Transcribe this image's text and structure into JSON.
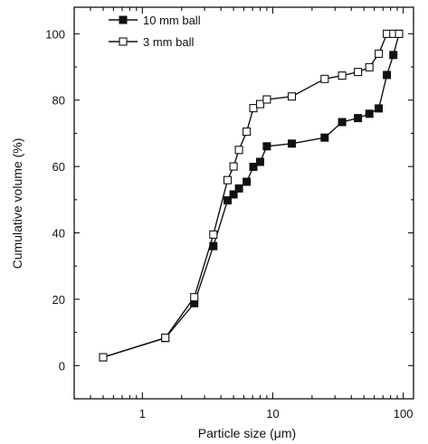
{
  "chart_data": {
    "type": "line",
    "xlabel": "Particle size (μm)",
    "ylabel": "Cumulative volume (%)",
    "xscale": "log",
    "xlim": [
      0.3,
      120
    ],
    "ylim": [
      -10,
      108
    ],
    "xticks": [
      1,
      10,
      100
    ],
    "xtick_labels": [
      "1",
      "10",
      "100"
    ],
    "yticks": [
      0,
      20,
      40,
      60,
      80,
      100
    ],
    "ytick_labels": [
      "0",
      "20",
      "40",
      "60",
      "80",
      "100"
    ],
    "grid": false,
    "legend_position": "top-left",
    "series": [
      {
        "name": "10 mm ball",
        "marker": "filled-square",
        "x": [
          0.5,
          1.5,
          2.5,
          3.5,
          4.5,
          5.0,
          5.5,
          6.3,
          7.1,
          8.0,
          9.0,
          14.0,
          25.0,
          34.0,
          45.0,
          55.0,
          65.0,
          75.0,
          84.0,
          93.0
        ],
        "y": [
          2.5,
          8.3,
          18.8,
          36.0,
          49.8,
          51.6,
          53.4,
          55.4,
          59.9,
          61.4,
          66.1,
          66.9,
          68.7,
          73.4,
          74.6,
          75.9,
          77.5,
          87.6,
          93.6,
          100.0
        ]
      },
      {
        "name": "3 mm ball",
        "marker": "open-square",
        "x": [
          0.5,
          1.5,
          2.5,
          3.5,
          4.5,
          5.0,
          5.5,
          6.3,
          7.1,
          8.0,
          9.0,
          14.0,
          25.0,
          34.0,
          45.0,
          55.0,
          65.0,
          75.0,
          84.0,
          93.0
        ],
        "y": [
          2.5,
          8.4,
          20.6,
          39.5,
          55.9,
          60.0,
          65.0,
          70.5,
          77.6,
          78.8,
          80.2,
          81.1,
          86.4,
          87.4,
          88.5,
          89.9,
          94.0,
          100.0,
          100.0,
          100.0
        ]
      }
    ]
  }
}
